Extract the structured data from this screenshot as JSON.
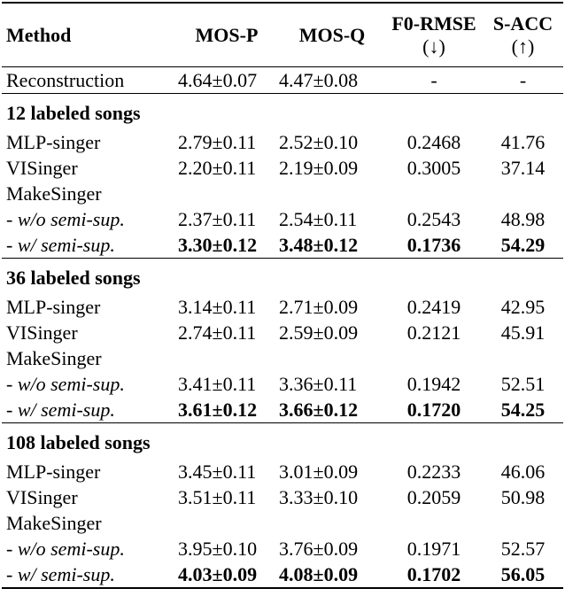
{
  "header": {
    "method": "Method",
    "mos_p": "MOS-P",
    "mos_q": "MOS-Q",
    "f0_rmse": "F0-RMSE",
    "f0_rmse_dir": "(↓)",
    "s_acc": "S-ACC",
    "s_acc_dir": "(↑)"
  },
  "reconstruction": {
    "method": "Reconstruction",
    "mos_p": "4.64±0.07",
    "mos_q": "4.47±0.08",
    "f0_rmse": "-",
    "s_acc": "-"
  },
  "groups": [
    {
      "title": "12 labeled songs",
      "rows": [
        {
          "method": "MLP-singer",
          "mos_p": "2.79±0.11",
          "mos_q": "2.52±0.10",
          "f0_rmse": "0.2468",
          "s_acc": "41.76"
        },
        {
          "method": "VISinger",
          "mos_p": "2.20±0.11",
          "mos_q": "2.19±0.09",
          "f0_rmse": "0.3005",
          "s_acc": "37.14"
        },
        {
          "method": "MakeSinger"
        },
        {
          "method": "- w/o semi-sup.",
          "mos_p": "2.37±0.11",
          "mos_q": "2.54±0.11",
          "f0_rmse": "0.2543",
          "s_acc": "48.98"
        },
        {
          "method": "- w/ semi-sup.",
          "mos_p": "3.30±0.12",
          "mos_q": "3.48±0.12",
          "f0_rmse": "0.1736",
          "s_acc": "54.29"
        }
      ]
    },
    {
      "title": "36 labeled songs",
      "rows": [
        {
          "method": "MLP-singer",
          "mos_p": "3.14±0.11",
          "mos_q": "2.71±0.09",
          "f0_rmse": "0.2419",
          "s_acc": "42.95"
        },
        {
          "method": "VISinger",
          "mos_p": "2.74±0.11",
          "mos_q": "2.59±0.09",
          "f0_rmse": "0.2121",
          "s_acc": "45.91"
        },
        {
          "method": "MakeSinger"
        },
        {
          "method": "- w/o semi-sup.",
          "mos_p": "3.41±0.11",
          "mos_q": "3.36±0.11",
          "f0_rmse": "0.1942",
          "s_acc": "52.51"
        },
        {
          "method": "- w/ semi-sup.",
          "mos_p": "3.61±0.12",
          "mos_q": "3.66±0.12",
          "f0_rmse": "0.1720",
          "s_acc": "54.25"
        }
      ]
    },
    {
      "title": "108 labeled songs",
      "rows": [
        {
          "method": "MLP-singer",
          "mos_p": "3.45±0.11",
          "mos_q": "3.01±0.09",
          "f0_rmse": "0.2233",
          "s_acc": "46.06"
        },
        {
          "method": "VISinger",
          "mos_p": "3.51±0.11",
          "mos_q": "3.33±0.10",
          "f0_rmse": "0.2059",
          "s_acc": "50.98"
        },
        {
          "method": "MakeSinger"
        },
        {
          "method": "- w/o semi-sup.",
          "mos_p": "3.95±0.10",
          "mos_q": "3.76±0.09",
          "f0_rmse": "0.1971",
          "s_acc": "52.57"
        },
        {
          "method": "- w/ semi-sup.",
          "mos_p": "4.03±0.09",
          "mos_q": "4.08±0.09",
          "f0_rmse": "0.1702",
          "s_acc": "56.05"
        }
      ]
    }
  ]
}
